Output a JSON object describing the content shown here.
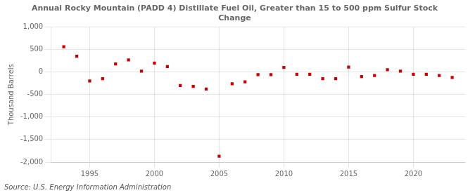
{
  "chart_data": {
    "type": "scatter",
    "title": "Annual Rocky Mountain (PADD 4) Distillate Fuel Oil, Greater than 15 to 500 ppm Sulfur Stock\nChange",
    "ylabel": "Thousand Barrels",
    "annotations": [
      "Source: U.S. Energy Information Administration"
    ],
    "x": [
      1993,
      1994,
      1995,
      1996,
      1997,
      1998,
      1999,
      2000,
      2001,
      2002,
      2003,
      2004,
      2005,
      2006,
      2007,
      2008,
      2009,
      2010,
      2011,
      2012,
      2013,
      2014,
      2015,
      2016,
      2017,
      2018,
      2019,
      2020,
      2021,
      2022,
      2023
    ],
    "values": [
      560,
      350,
      -200,
      -150,
      180,
      270,
      20,
      200,
      120,
      -300,
      -320,
      -380,
      -1870,
      -260,
      -220,
      -60,
      -60,
      100,
      -50,
      -50,
      -150,
      -150,
      110,
      -100,
      -80,
      50,
      20,
      -50,
      -50,
      -80,
      -120
    ],
    "color": "#cc0000",
    "marker": "square",
    "xlim": [
      1992,
      2024
    ],
    "xticks": [
      1995,
      2000,
      2005,
      2010,
      2015,
      2020
    ],
    "ylim": [
      -2000,
      1000
    ],
    "yticks": [
      {
        "value": -2000,
        "label": "-2,000"
      },
      {
        "value": -1500,
        "label": "-1,500"
      },
      {
        "value": -1000,
        "label": "-1,000"
      },
      -500,
      0,
      500,
      {
        "value": 1000,
        "label": "1,000"
      }
    ],
    "grid": true
  }
}
